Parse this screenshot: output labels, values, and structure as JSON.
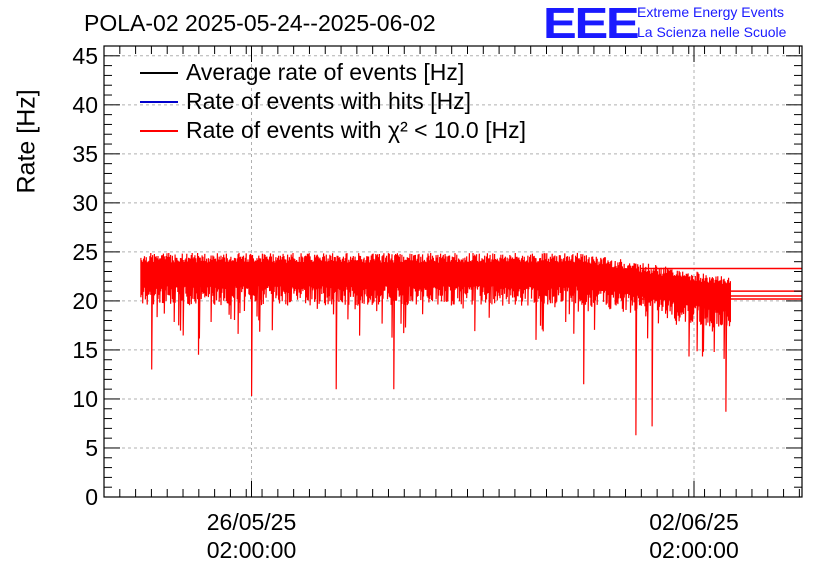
{
  "header": {
    "title": "POLA-02 2025-05-24--2025-06-02",
    "logo_text": "EEE",
    "brand_line1": "Extreme Energy Events",
    "brand_line2": "La Scienza nelle Scuole"
  },
  "chart_data": {
    "type": "line",
    "ylabel": "Rate [Hz]",
    "xlabel": "",
    "ylim": [
      0,
      46
    ],
    "y_ticks": [
      0,
      5,
      10,
      15,
      20,
      25,
      30,
      35,
      40,
      45
    ],
    "x_ticks": [
      {
        "value": "2025-05-26T02:00:00",
        "label_line1": "26/05/25",
        "label_line2": "02:00:00"
      },
      {
        "value": "2025-06-02T02:00:00",
        "label_line1": "02/06/25",
        "label_line2": "02:00:00"
      }
    ],
    "xlim": [
      "2025-05-23T18:00:00",
      "2025-06-03T19:00:00"
    ],
    "grid": true,
    "legend_position": "top-left",
    "series": [
      {
        "name": "Average rate of events [Hz]",
        "color": "#000000",
        "typical": 23.0
      },
      {
        "name": "Rate of events with hits [Hz]",
        "color": "#0000cc",
        "typical": 23.0
      },
      {
        "name": "Rate of events with χ² < 10.0 [Hz]",
        "color": "#ff0000",
        "typical": 23.0,
        "points": [
          {
            "x": "2025-05-24T08:00:00",
            "y": 22.5
          },
          {
            "x": "2025-05-24T12:00:00",
            "y": 13.0
          },
          {
            "x": "2025-05-25T06:00:00",
            "y": 14.5
          },
          {
            "x": "2025-05-26T02:00:00",
            "y": 10.3
          },
          {
            "x": "2025-05-27T10:00:00",
            "y": 11.0
          },
          {
            "x": "2025-05-28T08:00:00",
            "y": 11.0
          },
          {
            "x": "2025-05-31T08:00:00",
            "y": 11.5
          },
          {
            "x": "2025-06-01T04:00:00",
            "y": 6.3
          },
          {
            "x": "2025-06-01T10:00:00",
            "y": 7.2
          },
          {
            "x": "2025-06-02T14:00:00",
            "y": 8.7
          },
          {
            "x": "2025-06-02T16:00:00",
            "y": 20.5
          }
        ],
        "tail_levels": [
          23.3,
          21.0,
          20.5,
          20.2
        ]
      }
    ]
  }
}
